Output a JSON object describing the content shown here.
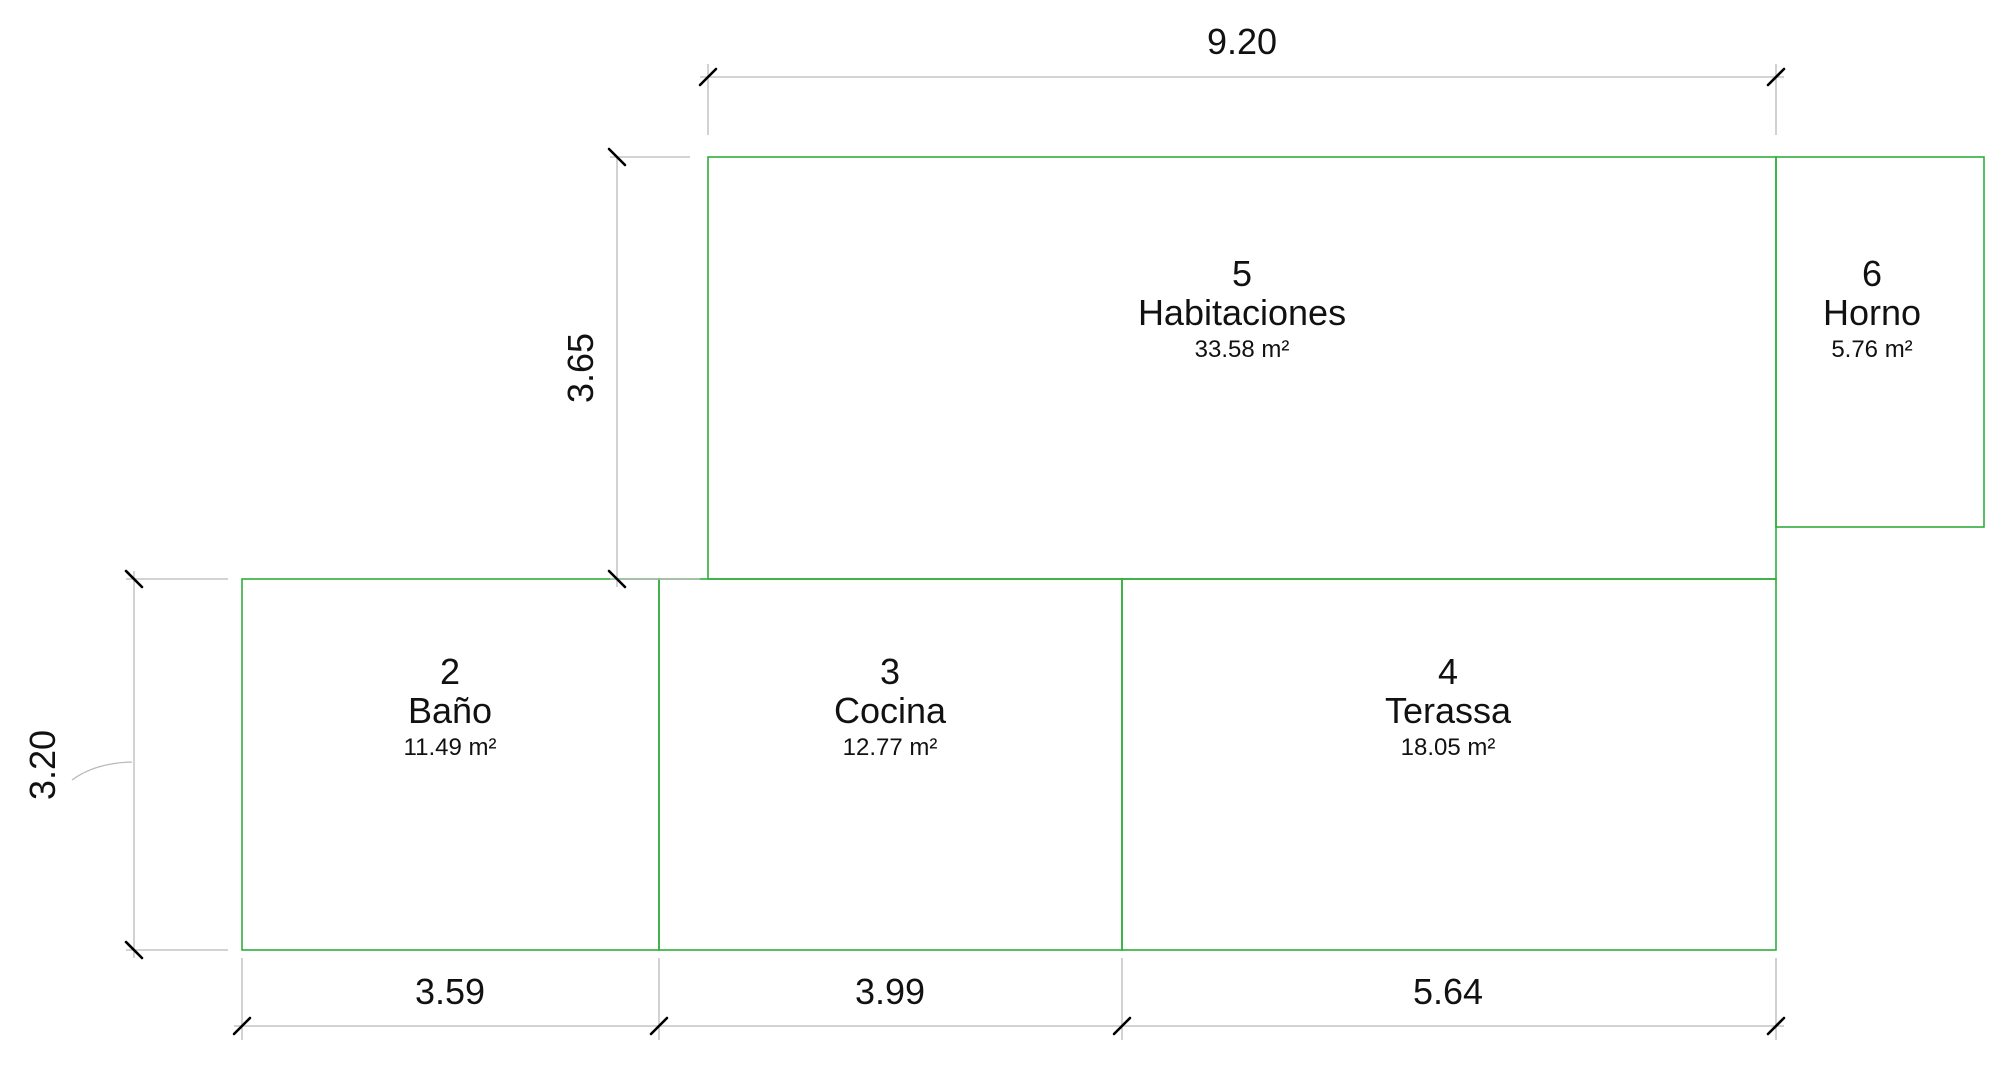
{
  "rooms": [
    {
      "id": "2",
      "number": "2",
      "name": "Baño",
      "area": "11.49 m²"
    },
    {
      "id": "3",
      "number": "3",
      "name": "Cocina",
      "area": "12.77 m²"
    },
    {
      "id": "4",
      "number": "4",
      "name": "Terassa",
      "area": "18.05 m²"
    },
    {
      "id": "5",
      "number": "5",
      "name": "Habitaciones",
      "area": "33.58 m²"
    },
    {
      "id": "6",
      "number": "6",
      "name": "Horno",
      "area": "5.76 m²"
    }
  ],
  "dimensions": {
    "top_overall": "9.20",
    "left_upper": "3.65",
    "left_lower": "3.20",
    "bottom_bano": "3.59",
    "bottom_cocina": "3.99",
    "bottom_terassa": "5.64"
  },
  "colors": {
    "room_outline": "#2fae3a",
    "dimension_line": "#b9b9b9",
    "tick_mark": "#000000",
    "text": "#111111"
  }
}
